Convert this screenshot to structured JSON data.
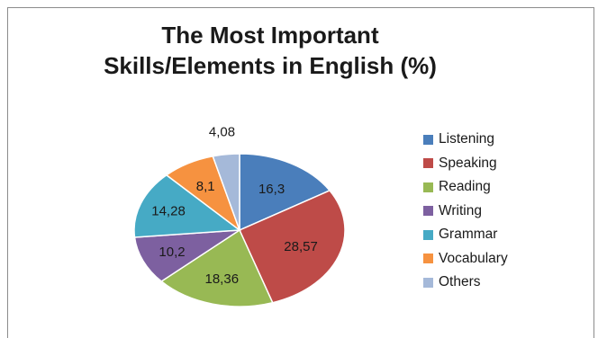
{
  "chart_data": {
    "type": "pie",
    "title_lines": [
      "The Most Important",
      "Skills/Elements in English (%)"
    ],
    "slices": [
      {
        "label": "Listening",
        "value": 16.3,
        "display": "16,3",
        "color": "#4a7ebb"
      },
      {
        "label": "Speaking",
        "value": 28.57,
        "display": "28,57",
        "color": "#be4b48"
      },
      {
        "label": "Reading",
        "value": 18.36,
        "display": "18,36",
        "color": "#98b954"
      },
      {
        "label": "Writing",
        "value": 10.2,
        "display": "10,2",
        "color": "#7d60a0"
      },
      {
        "label": "Grammar",
        "value": 14.28,
        "display": "14,28",
        "color": "#46aac5"
      },
      {
        "label": "Vocabulary",
        "value": 8.1,
        "display": "8,1",
        "color": "#f69240"
      },
      {
        "label": "Others",
        "value": 4.08,
        "display": "4,08",
        "color": "#a5b9d9"
      }
    ],
    "legend_position": "right"
  }
}
